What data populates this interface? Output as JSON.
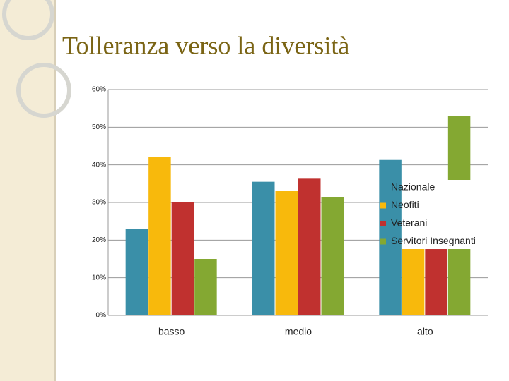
{
  "chart_data": {
    "type": "bar",
    "title": "Tolleranza verso la diversità",
    "categories": [
      "basso",
      "medio",
      "alto"
    ],
    "series": [
      {
        "name": "Nazionale",
        "color": "#3a8fa8",
        "values": [
          23,
          35.5,
          41.3
        ]
      },
      {
        "name": "Neofiti",
        "color": "#f8b90c",
        "values": [
          42,
          33,
          25
        ]
      },
      {
        "name": "Veterani",
        "color": "#c0312f",
        "values": [
          30,
          36.5,
          33.4
        ]
      },
      {
        "name": "Servitori Insegnanti",
        "color": "#84a832",
        "values": [
          15,
          31.5,
          53
        ]
      }
    ],
    "ylim": [
      0,
      60
    ],
    "yticks": [
      {
        "value": 0,
        "label": "0%"
      },
      {
        "value": 10,
        "label": "10%"
      },
      {
        "value": 20,
        "label": "20%"
      },
      {
        "value": 30,
        "label": "30%"
      },
      {
        "value": 40,
        "label": "40%"
      },
      {
        "value": 50,
        "label": "50%"
      },
      {
        "value": 60,
        "label": "60%"
      }
    ],
    "grid": true,
    "legend": "right"
  }
}
